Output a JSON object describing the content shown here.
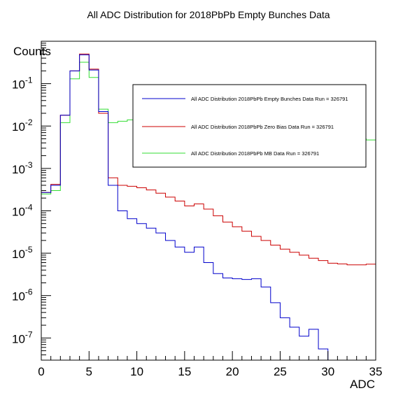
{
  "chart_data": {
    "type": "line",
    "title": "All ADC Distribution for 2018PbPb Empty Bunches Data",
    "xlabel": "ADC",
    "ylabel": "Counts",
    "xlim": [
      0,
      35
    ],
    "ylim": [
      3e-08,
      1
    ],
    "yscale": "log",
    "bin_width": 1,
    "x_ticks": [
      "0",
      "5",
      "10",
      "15",
      "20",
      "25",
      "30",
      "35"
    ],
    "y_ticks": [
      {
        "value": 1e-07,
        "mant": "10",
        "exp": "-7"
      },
      {
        "value": 1e-06,
        "mant": "10",
        "exp": "-6"
      },
      {
        "value": 1e-05,
        "mant": "10",
        "exp": "-5"
      },
      {
        "value": 0.0001,
        "mant": "10",
        "exp": "-4"
      },
      {
        "value": 0.001,
        "mant": "10",
        "exp": "-3"
      },
      {
        "value": 0.01,
        "mant": "10",
        "exp": "-2"
      },
      {
        "value": 0.1,
        "mant": "10",
        "exp": "-1"
      }
    ],
    "legend_position": "top-right",
    "series": [
      {
        "name": "All ADC Distribution 2018PbPb Empty Bunches Data Run = 326791",
        "color": "#0000cc",
        "values": [
          0.00027,
          0.0004,
          0.018,
          0.2,
          0.48,
          0.21,
          0.022,
          0.0004,
          0.0001,
          6.5e-05,
          5e-05,
          3.9e-05,
          3e-05,
          2e-05,
          1.4e-05,
          1.05e-05,
          1.4e-05,
          6e-06,
          3.3e-06,
          2.6e-06,
          2.5e-06,
          2.4e-06,
          2.5e-06,
          1.6e-06,
          6.8e-07,
          3e-07,
          1.8e-07,
          1.1e-07,
          1.6e-07,
          5.5e-08,
          3e-08,
          3e-08,
          3e-08,
          3e-08,
          3e-08
        ]
      },
      {
        "name": "All ADC Distribution 2018PbPb Zero Bias Data Run = 326791",
        "color": "#cc0000",
        "values": [
          0.00027,
          0.00042,
          0.018,
          0.2,
          0.5,
          0.22,
          0.02,
          0.0006,
          0.0004,
          0.00038,
          0.00035,
          0.00031,
          0.00026,
          0.00021,
          0.00017,
          0.00013,
          0.000145,
          0.00011,
          7.6e-05,
          5.4e-05,
          4.2e-05,
          3.3e-05,
          2.5e-05,
          2e-05,
          1.55e-05,
          1.25e-05,
          1.05e-05,
          9e-06,
          7.6e-06,
          6.7e-06,
          5.8e-06,
          5.6e-06,
          5.3e-06,
          5.3e-06,
          5.5e-06
        ]
      },
      {
        "name": "All ADC Distribution 2018PbPb MB Data Run = 326791",
        "color": "#33dd33",
        "values": [
          0.00025,
          0.0003,
          0.012,
          0.13,
          0.32,
          0.14,
          0.025,
          0.012,
          0.013,
          0.014,
          0.015,
          0.015,
          0.015,
          0.015,
          0.015,
          0.015,
          0.015,
          0.014,
          0.013,
          0.012,
          0.011,
          0.01,
          0.0095,
          0.009,
          0.0085,
          0.008,
          0.0075,
          0.007,
          0.0065,
          0.006,
          0.0058,
          0.0055,
          0.0052,
          0.005,
          0.0047
        ]
      }
    ]
  }
}
